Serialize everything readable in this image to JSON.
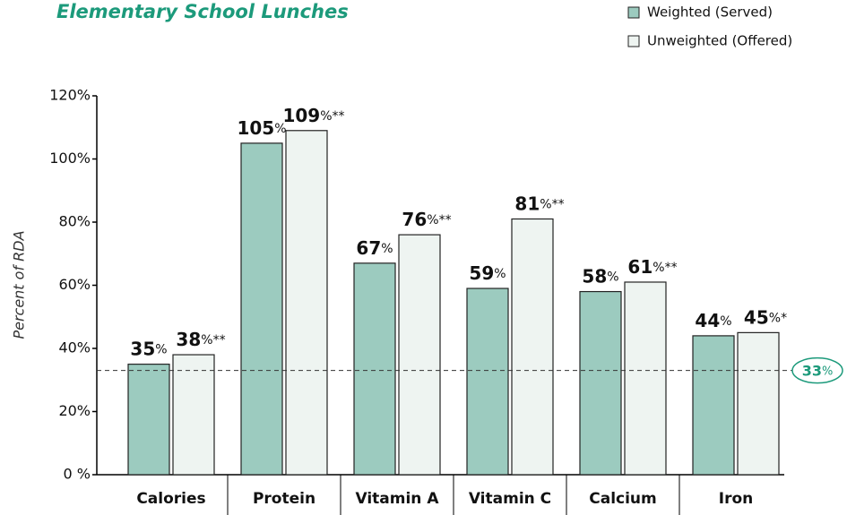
{
  "chart_data": {
    "type": "bar",
    "title": "Elementary School Lunches",
    "ylabel": "Percent of RDA",
    "categories": [
      "Calories",
      "Protein",
      "Vitamin A",
      "Vitamin C",
      "Calcium",
      "Iron"
    ],
    "series": [
      {
        "name": "Weighted (Served)",
        "color": "#9ccbbf",
        "values": [
          35,
          105,
          67,
          59,
          58,
          44
        ],
        "value_labels": [
          "35%",
          "105%",
          "67%",
          "59%",
          "58%",
          "44%"
        ]
      },
      {
        "name": "Unweighted (Offered)",
        "color": "#eef4f1",
        "values": [
          38,
          109,
          76,
          81,
          61,
          45
        ],
        "value_labels": [
          "38%**",
          "109%**",
          "76%**",
          "81%**",
          "61%**",
          "45%*"
        ]
      }
    ],
    "ylim": [
      0,
      120
    ],
    "yticks": [
      {
        "value": 0,
        "label": "0 %"
      },
      {
        "value": 20,
        "label": "20%"
      },
      {
        "value": 40,
        "label": "40%"
      },
      {
        "value": 60,
        "label": "60%"
      },
      {
        "value": 80,
        "label": "80%"
      },
      {
        "value": 100,
        "label": "100%"
      },
      {
        "value": 120,
        "label": "120%"
      }
    ],
    "reference_line": {
      "value": 33,
      "label": "33%"
    },
    "legend": "upper right"
  }
}
